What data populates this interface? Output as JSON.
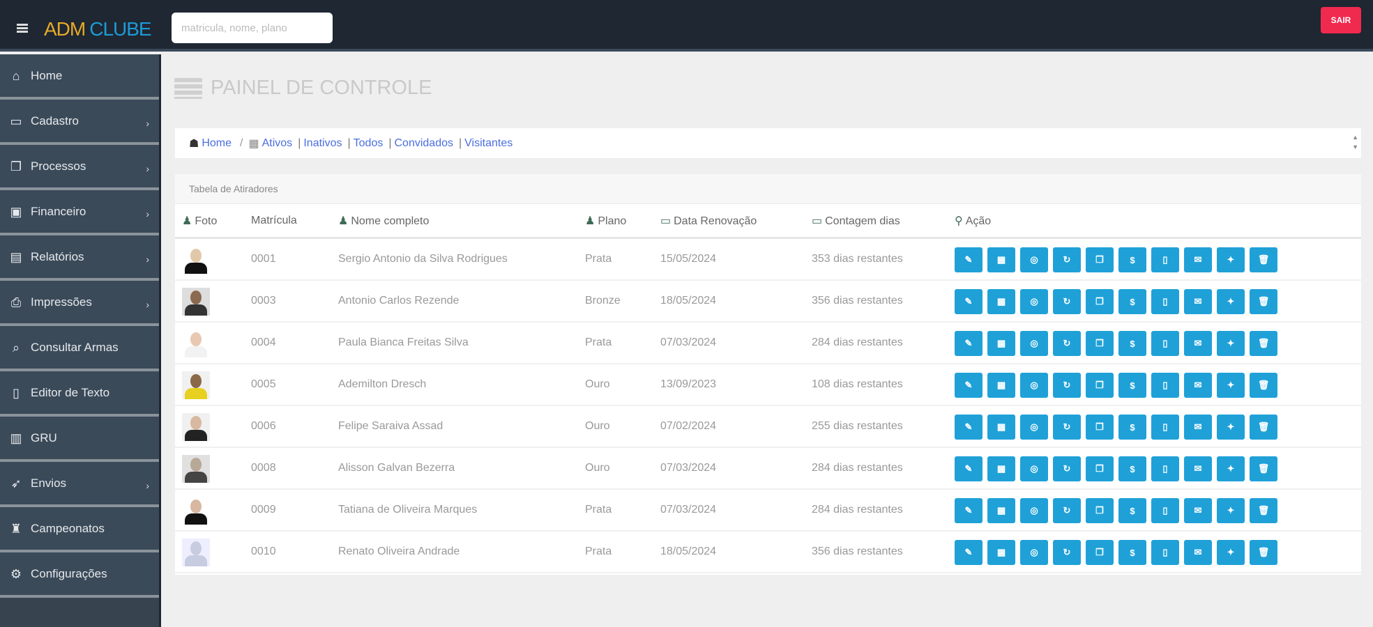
{
  "header": {
    "logo_a": "ADM",
    "logo_b": "CLUBE",
    "search_placeholder": "matricula, nome, plano",
    "logout": "SAIR"
  },
  "sidebar": {
    "items": [
      {
        "label": "Home",
        "icon": "home-icon",
        "glyph": "⌂",
        "sub": false
      },
      {
        "label": "Cadastro",
        "icon": "monitor-icon",
        "glyph": "▭",
        "sub": true
      },
      {
        "label": "Processos",
        "icon": "copy-icon",
        "glyph": "❐",
        "sub": true
      },
      {
        "label": "Financeiro",
        "icon": "money-icon",
        "glyph": "▣",
        "sub": true
      },
      {
        "label": "Relatórios",
        "icon": "book-icon",
        "glyph": "▤",
        "sub": true
      },
      {
        "label": "Impressões",
        "icon": "print-icon",
        "glyph": "⎙",
        "sub": true
      },
      {
        "label": "Consultar Armas",
        "icon": "search-icon",
        "glyph": "⌕",
        "sub": false
      },
      {
        "label": "Editor de Texto",
        "icon": "document-icon",
        "glyph": "▯",
        "sub": false
      },
      {
        "label": "GRU",
        "icon": "barcode-icon",
        "glyph": "▥",
        "sub": false
      },
      {
        "label": "Envios",
        "icon": "rocket-icon",
        "glyph": "➶",
        "sub": true
      },
      {
        "label": "Campeonatos",
        "icon": "trophy-icon",
        "glyph": "♜",
        "sub": false
      },
      {
        "label": "Configurações",
        "icon": "gear-icon",
        "glyph": "⚙",
        "sub": false
      }
    ]
  },
  "page": {
    "title": "PAINEL DE CONTROLE"
  },
  "breadcrumb": {
    "home": "Home",
    "links": [
      "Ativos",
      "Inativos",
      "Todos",
      "Convidados",
      "Visitantes"
    ]
  },
  "table": {
    "title": "Tabela de Atiradores",
    "columns": [
      "Foto",
      "Matrícula",
      "Nome completo",
      "Plano",
      "Data Renovação",
      "Contagem dias",
      "Ação"
    ],
    "rows": [
      {
        "matricula": "0001",
        "nome": "Sergio Antonio da Silva Rodrigues",
        "plano": "Prata",
        "data": "15/05/2024",
        "contagem": "353 dias restantes"
      },
      {
        "matricula": "0003",
        "nome": "Antonio Carlos Rezende",
        "plano": "Bronze",
        "data": "18/05/2024",
        "contagem": "356 dias restantes"
      },
      {
        "matricula": "0004",
        "nome": "Paula Bianca Freitas Silva",
        "plano": "Prata",
        "data": "07/03/2024",
        "contagem": "284 dias restantes"
      },
      {
        "matricula": "0005",
        "nome": "Ademilton Dresch",
        "plano": "Ouro",
        "data": "13/09/2023",
        "contagem": "108 dias restantes"
      },
      {
        "matricula": "0006",
        "nome": "Felipe Saraiva Assad",
        "plano": "Ouro",
        "data": "07/02/2024",
        "contagem": "255 dias restantes"
      },
      {
        "matricula": "0008",
        "nome": "Alisson Galvan Bezerra",
        "plano": "Ouro",
        "data": "07/03/2024",
        "contagem": "284 dias restantes"
      },
      {
        "matricula": "0009",
        "nome": "Tatiana de Oliveira Marques",
        "plano": "Prata",
        "data": "07/03/2024",
        "contagem": "284 dias restantes"
      },
      {
        "matricula": "0010",
        "nome": "Renato Oliveira Andrade",
        "plano": "Prata",
        "data": "18/05/2024",
        "contagem": "356 dias restantes"
      }
    ],
    "actions": [
      {
        "icon": "edit-icon",
        "glyph": "✎"
      },
      {
        "icon": "id-card-icon",
        "glyph": "▦"
      },
      {
        "icon": "whatsapp-icon",
        "glyph": "◎"
      },
      {
        "icon": "refresh-icon",
        "glyph": "↻"
      },
      {
        "icon": "copy-icon",
        "glyph": "❐"
      },
      {
        "icon": "dollar-icon",
        "glyph": "$"
      },
      {
        "icon": "file-icon",
        "glyph": "▯"
      },
      {
        "icon": "envelope-icon",
        "glyph": "✉"
      },
      {
        "icon": "wrench-icon",
        "glyph": "✦"
      },
      {
        "icon": "trash-icon",
        "glyph": "🗑"
      }
    ]
  },
  "colors": {
    "topbar": "#1e2732",
    "sidebar": "#3b4a59",
    "accent": "#1fa1d8",
    "logout": "#f0294f",
    "logo_a": "#e8a928",
    "logo_b": "#1e9ad6"
  }
}
